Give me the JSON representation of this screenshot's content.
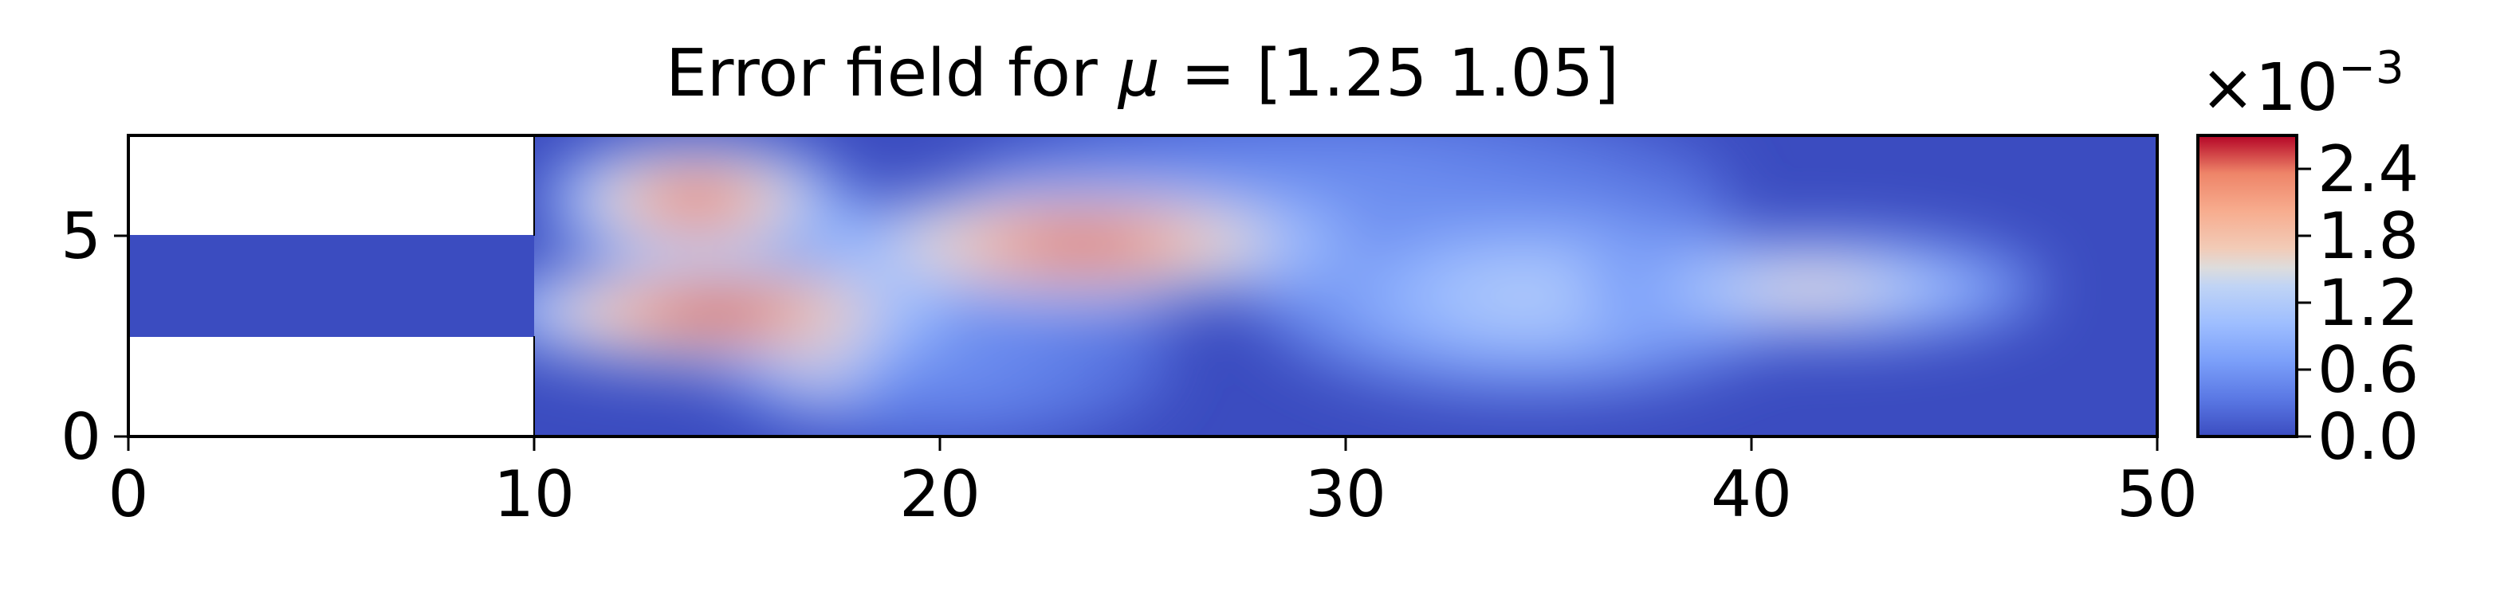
{
  "chart_data": {
    "type": "heatmap",
    "title_prefix": "Error field for ",
    "title_symbol": "μ",
    "title_suffix": " = [1.25 1.05]",
    "xlabel": "",
    "ylabel": "",
    "xlim": [
      0,
      50
    ],
    "ylim": [
      0,
      7.5
    ],
    "xticks": [
      0,
      10,
      20,
      30,
      40,
      50
    ],
    "yticks": [
      0,
      5
    ],
    "colormap": "coolwarm",
    "colorbar": {
      "multiplier_base": "×10",
      "multiplier_exponent": "−3",
      "range": [
        0.0,
        2.7
      ],
      "ticks": [
        "0.0",
        "0.6",
        "1.2",
        "1.8",
        "2.4"
      ],
      "tick_values": [
        0.0,
        0.6,
        1.2,
        1.8,
        2.4
      ]
    },
    "domain": {
      "inlet_channel": {
        "x": [
          0,
          10
        ],
        "y": [
          2.5,
          5.0
        ]
      },
      "main_channel": {
        "x": [
          10,
          50
        ],
        "y": [
          0,
          7.5
        ]
      }
    },
    "background_error": 0.15,
    "hotspots": [
      {
        "x": 14.0,
        "y": 5.9,
        "sx": 2.0,
        "sy": 0.8,
        "value": 2.45
      },
      {
        "x": 14.5,
        "y": 3.1,
        "sx": 3.0,
        "sy": 0.75,
        "value": 2.6
      },
      {
        "x": 17.0,
        "y": 1.8,
        "sx": 1.0,
        "sy": 0.5,
        "value": 1.8
      },
      {
        "x": 23.5,
        "y": 4.8,
        "sx": 3.5,
        "sy": 0.8,
        "value": 2.5
      },
      {
        "x": 34.5,
        "y": 3.5,
        "sx": 3.5,
        "sy": 1.3,
        "value": 1.2
      },
      {
        "x": 41.5,
        "y": 3.7,
        "sx": 3.0,
        "sy": 0.7,
        "value": 1.6
      },
      {
        "x": 30.0,
        "y": 6.0,
        "sx": 5.0,
        "sy": 1.3,
        "value": 0.55
      },
      {
        "x": 20.0,
        "y": 2.0,
        "sx": 3.0,
        "sy": 1.2,
        "value": 0.55
      }
    ]
  }
}
